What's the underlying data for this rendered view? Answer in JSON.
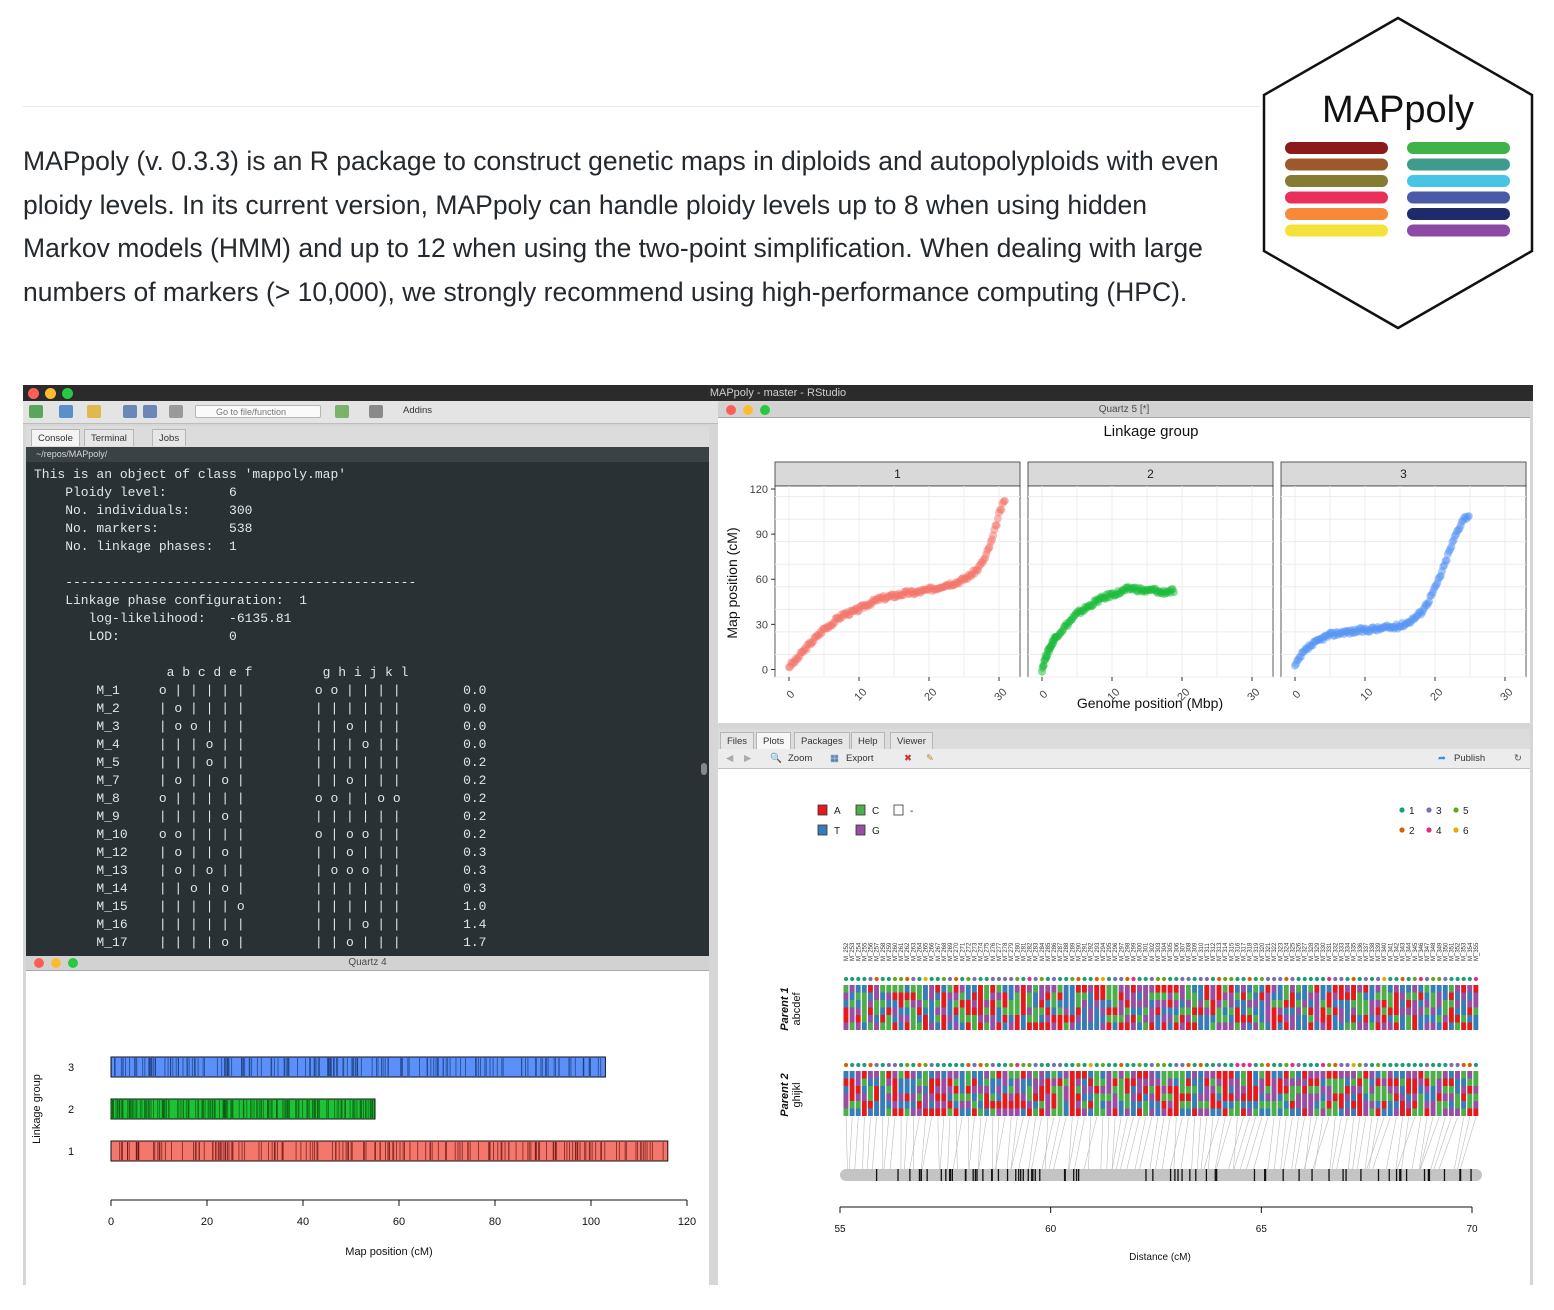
{
  "intro": {
    "text": "MAPpoly (v. 0.3.3) is an R package to construct genetic maps in diploids and autopolyploids with even ploidy levels. In its current version, MAPpoly can handle ploidy levels up to 8 when using hidden Markov models (HMM) and up to 12 when using the two-point simplification. When dealing with large numbers of markers (> 10,000), we strongly recommend using high-performance computing (HPC)."
  },
  "logo": {
    "title": "MAPpoly",
    "colors_left": [
      "#8b1a1a",
      "#9c5a2a",
      "#857b33",
      "#e8305a",
      "#f68a3a",
      "#f4e23a"
    ],
    "colors_right": [
      "#3fb24a",
      "#3f9b8e",
      "#48c4e6",
      "#4a5aa8",
      "#1f2a6b",
      "#8a4aa5"
    ]
  },
  "window": {
    "title": "MAPpoly - master - RStudio"
  },
  "toolbar": {
    "goto_placeholder": "Go to file/function",
    "addins_label": "Addins"
  },
  "console": {
    "tabs": [
      "Console",
      "Terminal",
      "Jobs"
    ],
    "path": "~/repos/MAPpoly/",
    "header_lines": [
      "This is an object of class 'mappoly.map'",
      "    Ploidy level:        6",
      "    No. individuals:     300",
      "    No. markers:         538",
      "    No. linkage phases:  1",
      "",
      "    ---------------------------------------------",
      "    Linkage phase configuration:  1",
      "       log-likelihood:   -6135.81",
      "       LOD:              0",
      "",
      "                 a b c d e f         g h i j k l"
    ],
    "rows": [
      {
        "marker": "M_1",
        "p1": "o | | | | |",
        "p2": "o o | | | |",
        "dist": "0.0"
      },
      {
        "marker": "M_2",
        "p1": "| o | | | |",
        "p2": "| | | | | |",
        "dist": "0.0"
      },
      {
        "marker": "M_3",
        "p1": "| o o | | |",
        "p2": "| | o | | |",
        "dist": "0.0"
      },
      {
        "marker": "M_4",
        "p1": "| | | o | |",
        "p2": "| | | o | |",
        "dist": "0.0"
      },
      {
        "marker": "M_5",
        "p1": "| | | o | |",
        "p2": "| | | | | |",
        "dist": "0.2"
      },
      {
        "marker": "M_7",
        "p1": "| o | | o |",
        "p2": "| | o | | |",
        "dist": "0.2"
      },
      {
        "marker": "M_8",
        "p1": "o | | | | |",
        "p2": "o o | | o o",
        "dist": "0.2"
      },
      {
        "marker": "M_9",
        "p1": "| | | | o |",
        "p2": "| | | | | |",
        "dist": "0.2"
      },
      {
        "marker": "M_10",
        "p1": "o o | | | |",
        "p2": "o | o o | |",
        "dist": "0.2"
      },
      {
        "marker": "M_12",
        "p1": "| o | | o |",
        "p2": "| | o | | |",
        "dist": "0.3"
      },
      {
        "marker": "M_13",
        "p1": "| o | o | |",
        "p2": "| o o o | |",
        "dist": "0.3"
      },
      {
        "marker": "M_14",
        "p1": "| | o | o |",
        "p2": "| | | | | |",
        "dist": "0.3"
      },
      {
        "marker": "M_15",
        "p1": "| | | | | o",
        "p2": "| | | | | |",
        "dist": "1.0"
      },
      {
        "marker": "M_16",
        "p1": "| | | | | |",
        "p2": "| | | o | |",
        "dist": "1.4"
      },
      {
        "marker": "M_17",
        "p1": "| | | | o |",
        "p2": "| | o | | |",
        "dist": "1.7"
      }
    ]
  },
  "quartz4": {
    "title": "Quartz 4",
    "chart_data": {
      "type": "bar",
      "orientation": "horizontal",
      "categories": [
        "3",
        "2",
        "1"
      ],
      "values": [
        103,
        55,
        116
      ],
      "colors": [
        "#5b8ff9",
        "#1fc236",
        "#f4776b"
      ],
      "xlabel": "Map position (cM)",
      "ylabel": "Linkage group",
      "xlim": [
        0,
        120
      ],
      "xticks": [
        0,
        20,
        40,
        60,
        80,
        100,
        120
      ]
    }
  },
  "quartz5": {
    "title": "Quartz 5 [*]",
    "chart_data": {
      "type": "scatter",
      "title": "Linkage group",
      "xlabel": "Genome position (Mbp)",
      "ylabel": "Map position (cM)",
      "ylim": [
        -5,
        122
      ],
      "xlim": [
        -2,
        33
      ],
      "yticks": [
        0,
        30,
        60,
        90,
        120
      ],
      "xticks": [
        0,
        10,
        20,
        30
      ],
      "grid": true,
      "panels": [
        {
          "name": "1",
          "color": "#f4766c",
          "x": [
            0,
            1,
            2,
            3,
            4,
            5,
            6,
            7,
            8,
            9,
            10,
            11,
            12,
            13,
            14,
            15,
            16,
            17,
            18,
            19,
            20,
            21,
            22,
            23,
            24,
            25,
            26,
            27,
            28,
            29,
            30,
            31
          ],
          "y": [
            2,
            6,
            12,
            17,
            22,
            27,
            30,
            34,
            37,
            38,
            40,
            43,
            45,
            47,
            48,
            49,
            50,
            51,
            51,
            52,
            53,
            54,
            56,
            57,
            58,
            60,
            63,
            67,
            74,
            86,
            103,
            115
          ]
        },
        {
          "name": "2",
          "color": "#1cbb3a",
          "x": [
            0,
            0.5,
            1,
            1.5,
            2,
            3,
            4,
            5,
            6,
            7,
            8,
            9,
            10,
            11,
            12,
            13,
            14,
            15,
            16,
            17,
            18,
            19
          ],
          "y": [
            0,
            8,
            13,
            18,
            22,
            27,
            32,
            37,
            40,
            43,
            46,
            48,
            50,
            51,
            53,
            54,
            53,
            52,
            53,
            51,
            52,
            52
          ]
        },
        {
          "name": "3",
          "color": "#5796f4",
          "x": [
            0,
            1,
            2,
            3,
            4,
            5,
            6,
            7,
            8,
            9,
            10,
            11,
            12,
            13,
            14,
            15,
            16,
            17,
            18,
            19,
            20,
            21,
            22,
            23,
            24,
            25
          ],
          "y": [
            2,
            10,
            15,
            18,
            21,
            23,
            24,
            25,
            25,
            26,
            26,
            27,
            27,
            28,
            28,
            29,
            31,
            34,
            38,
            45,
            54,
            65,
            78,
            90,
            100,
            103
          ]
        }
      ]
    }
  },
  "files": {
    "tabs": [
      "Files",
      "Plots",
      "Packages",
      "Help",
      "Viewer"
    ],
    "zoom_label": "Zoom",
    "export_label": "Export",
    "publish_label": "Publish",
    "chart_data": {
      "type": "heatmap",
      "xlabel": "Distance (cM)",
      "xlim": [
        55,
        70
      ],
      "xticks": [
        55,
        60,
        65,
        70
      ],
      "allele_legend": [
        {
          "label": "A",
          "color": "#e41a1c"
        },
        {
          "label": "C",
          "color": "#4daf4a"
        },
        {
          "label": "-",
          "color": "#ffffff"
        },
        {
          "label": "T",
          "color": "#377eb8"
        },
        {
          "label": "G",
          "color": "#984ea3"
        }
      ],
      "dosage_legend": [
        {
          "label": "1",
          "color": "#1b9e77"
        },
        {
          "label": "3",
          "color": "#7570b3"
        },
        {
          "label": "5",
          "color": "#66a61e"
        },
        {
          "label": "2",
          "color": "#d95f02"
        },
        {
          "label": "4",
          "color": "#e7298a"
        },
        {
          "label": "6",
          "color": "#e6ab02"
        }
      ],
      "parents": [
        {
          "name": "Parent 1",
          "homologs": "abcdef"
        },
        {
          "name": "Parent 2",
          "homologs": "ghijkl"
        }
      ],
      "markers": [
        "M_252",
        "M_253",
        "M_254",
        "M_255",
        "M_256",
        "M_257",
        "M_258",
        "M_259",
        "M_260",
        "M_261",
        "M_262",
        "M_263",
        "M_264",
        "M_265",
        "M_266",
        "M_267",
        "M_268",
        "M_269",
        "M_270",
        "M_271",
        "M_272",
        "M_273",
        "M_274",
        "M_275",
        "M_276",
        "M_277",
        "M_278",
        "M_279",
        "M_280",
        "M_281",
        "M_282",
        "M_283",
        "M_284",
        "M_285",
        "M_286",
        "M_287",
        "M_288",
        "M_289",
        "M_290",
        "M_291",
        "M_292",
        "M_293",
        "M_294",
        "M_295",
        "M_296",
        "M_297",
        "M_298",
        "M_299",
        "M_300",
        "M_301",
        "M_302",
        "M_303",
        "M_304",
        "M_305",
        "M_306",
        "M_307",
        "M_308",
        "M_309",
        "M_310",
        "M_311",
        "M_312",
        "M_313",
        "M_314",
        "M_315",
        "M_316",
        "M_317",
        "M_318",
        "M_319",
        "M_320",
        "M_321",
        "M_322",
        "M_323",
        "M_324",
        "M_325",
        "M_326",
        "M_327",
        "M_328",
        "M_329",
        "M_330",
        "M_331",
        "M_332",
        "M_333",
        "M_334",
        "M_335",
        "M_336",
        "M_337",
        "M_338",
        "M_339",
        "M_340",
        "M_341",
        "M_342",
        "M_343",
        "M_344",
        "M_345",
        "M_346",
        "M_347",
        "M_348",
        "M_349",
        "M_350",
        "M_351",
        "M_352",
        "M_353",
        "M_354",
        "M_355"
      ]
    }
  }
}
